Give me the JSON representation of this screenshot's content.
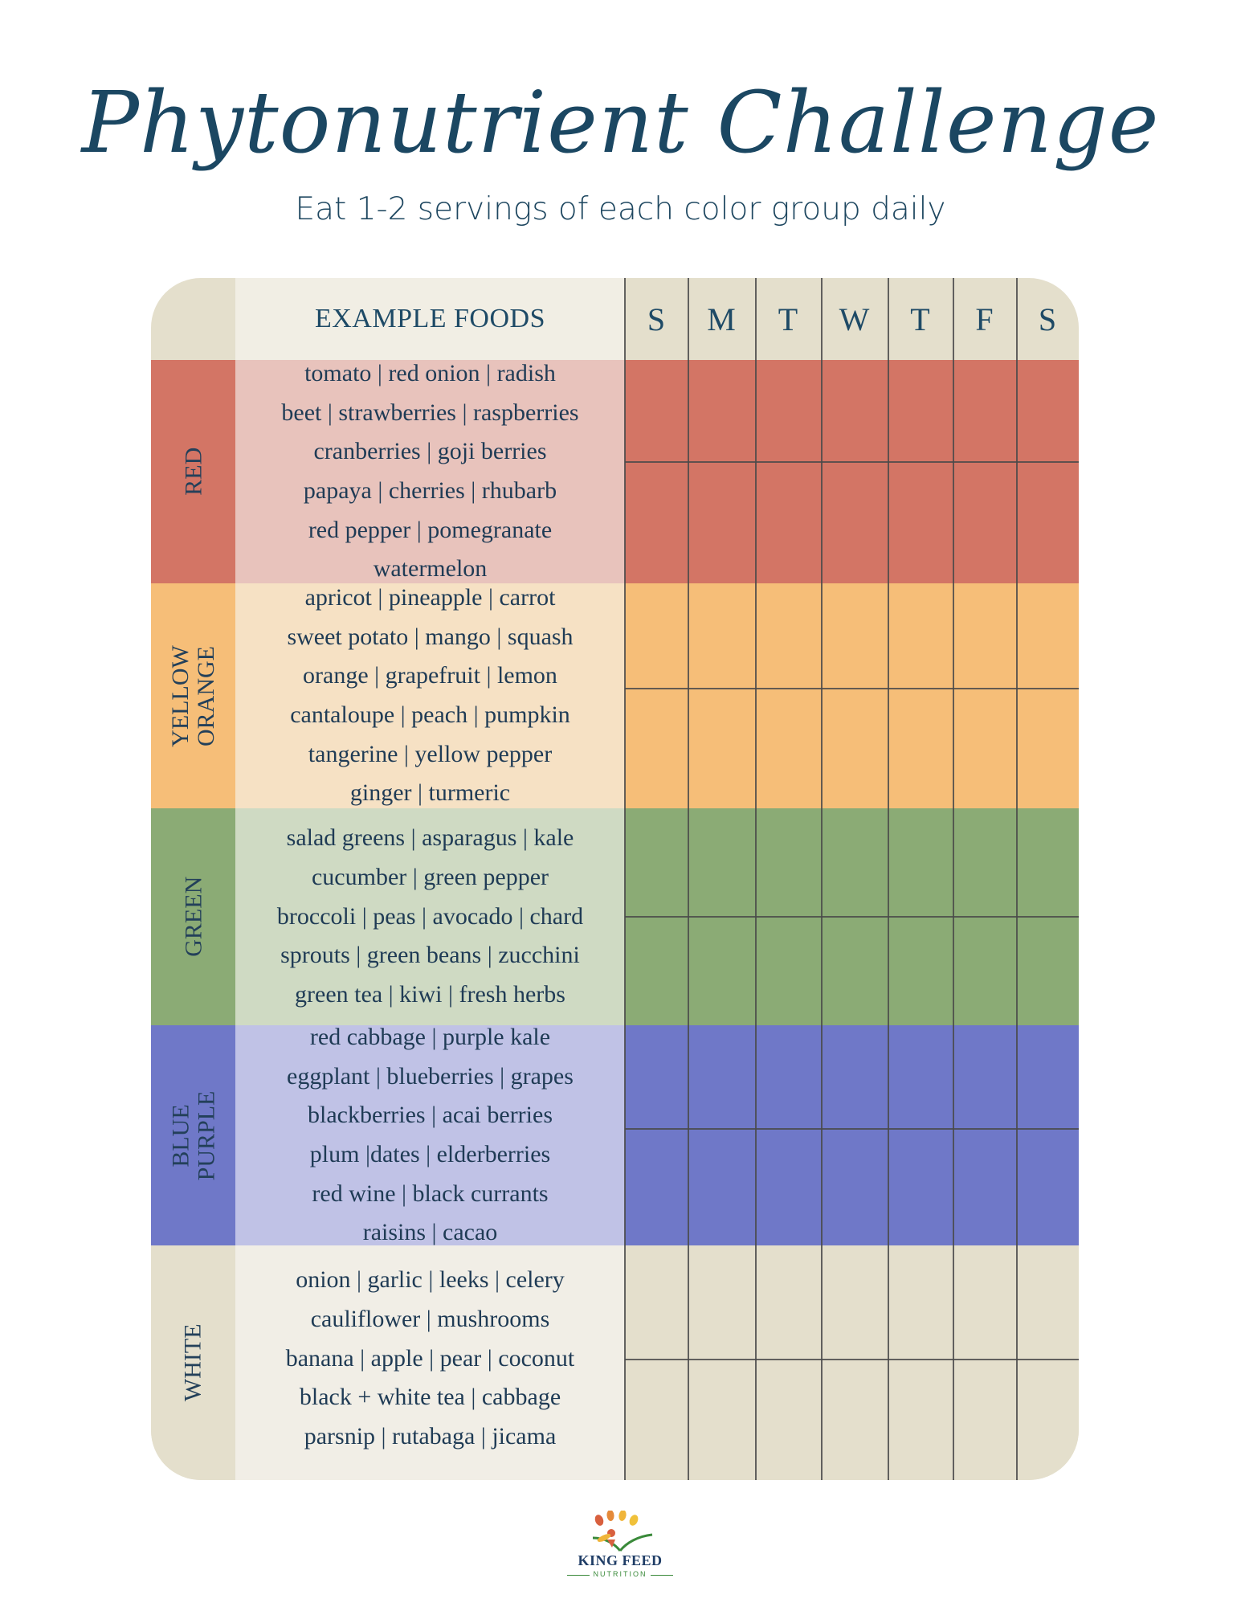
{
  "title": "Phytonutrient Challenge",
  "subtitle": "Eat 1-2 servings of each color group daily",
  "header": {
    "foods_label": "EXAMPLE FOODS",
    "days": [
      "S",
      "M",
      "T",
      "W",
      "T",
      "F",
      "S"
    ]
  },
  "groups": [
    {
      "label_lines": [
        "RED"
      ],
      "foods": [
        "tomato | red onion | radish",
        "beet | strawberries | raspberries",
        "cranberries | goji berries",
        "papaya | cherries | rhubarb",
        "red pepper | pomegranate",
        "watermelon"
      ],
      "label_color": "#d37565",
      "foods_color": "#e8c3bc",
      "grid_color": "#d37565"
    },
    {
      "label_lines": [
        "YELLOW",
        "ORANGE"
      ],
      "foods": [
        "apricot | pineapple | carrot",
        "sweet potato | mango | squash",
        "orange | grapefruit | lemon",
        "cantaloupe | peach | pumpkin",
        "tangerine | yellow pepper",
        "ginger |  turmeric"
      ],
      "label_color": "#f6be78",
      "foods_color": "#f6e1c4",
      "grid_color": "#f6be78"
    },
    {
      "label_lines": [
        "GREEN"
      ],
      "foods": [
        "salad greens | asparagus | kale",
        "cucumber | green pepper",
        "broccoli | peas | avocado | chard",
        "sprouts | green beans | zucchini",
        "green tea | kiwi | fresh herbs"
      ],
      "label_color": "#8bab75",
      "foods_color": "#cfdac3",
      "grid_color": "#8bab75"
    },
    {
      "label_lines": [
        "BLUE",
        "PURPLE"
      ],
      "foods": [
        "red cabbage | purple kale",
        "eggplant | blueberries | grapes",
        "blackberries | acai berries",
        "plum |dates | elderberries",
        "red wine | black currants",
        "raisins | cacao"
      ],
      "label_color": "#6f78c8",
      "foods_color": "#c0c2e6",
      "grid_color": "#6f78c8"
    },
    {
      "label_lines": [
        "WHITE"
      ],
      "foods": [
        "onion | garlic | leeks | celery",
        "cauliflower | mushrooms",
        "banana | apple | pear | coconut",
        "black + white tea | cabbage",
        "parsnip | rutabaga | jicama"
      ],
      "label_color": "#e4dfcc",
      "foods_color": "#f1eee6",
      "grid_color": "#e4dfcc"
    }
  ],
  "logo": {
    "line1": "KING FEED",
    "line2": "NUTRITION",
    "icon": "sprout-icon"
  }
}
